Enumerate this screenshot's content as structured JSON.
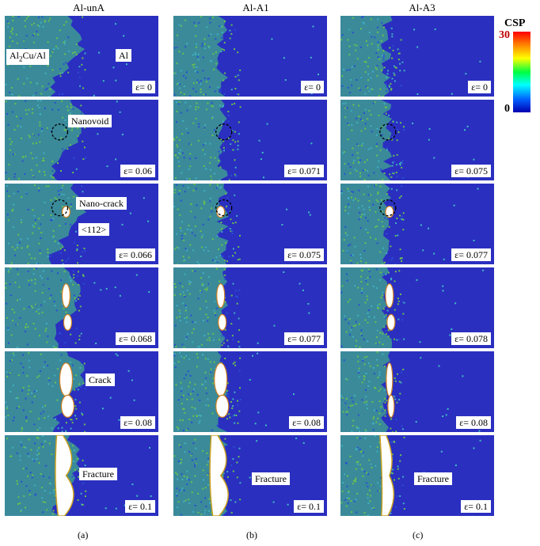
{
  "columns": [
    {
      "title": "Al-unA",
      "sub": "(a)"
    },
    {
      "title": "Al-A1",
      "sub": "(b)"
    },
    {
      "title": "Al-A3",
      "sub": "(c)"
    }
  ],
  "strains": [
    [
      "ε= 0",
      "ε= 0.06",
      "ε= 0.066",
      "ε= 0.068",
      "ε= 0.08",
      "ε= 0.1"
    ],
    [
      "ε= 0",
      "ε= 0.071",
      "ε= 0.075",
      "ε= 0.077",
      "ε= 0.08",
      "ε= 0.1"
    ],
    [
      "ε= 0",
      "ε= 0.075",
      "ε= 0.077",
      "ε= 0.078",
      "ε= 0.08",
      "ε= 0.1"
    ]
  ],
  "labels": {
    "phase_left_main": "Al",
    "phase_left_sub": "2",
    "phase_left_rest": "Cu/Al",
    "phase_right": "Al",
    "nanovoid": "Nanovoid",
    "nanocrack": "Nano-crack",
    "direction": "<112>",
    "crack": "Crack",
    "fracture": "Fracture"
  },
  "colorbar": {
    "title": "CSP",
    "max": "30",
    "min": "0"
  },
  "colors": {
    "matrix": "#2a2fc0",
    "interface": "#3a9a8a",
    "crack": "#ffffff"
  }
}
